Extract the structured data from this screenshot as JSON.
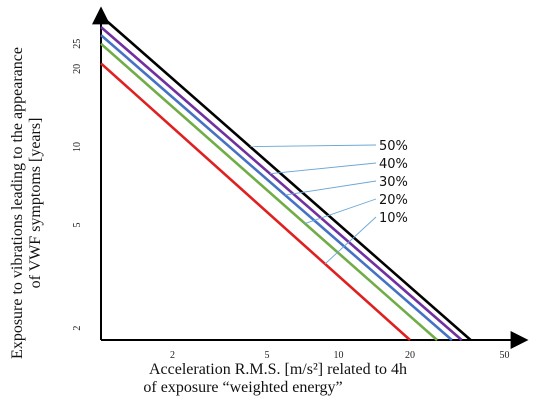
{
  "chart_data": {
    "type": "line",
    "title": "",
    "xlabel": [
      "Acceleration R.M.S. [m/s²] related to 4h",
      "of exposure “weighted energy”"
    ],
    "ylabel": [
      "Exposure to vibrations leading to the appearance",
      "of VWF symptoms [years]"
    ],
    "x_scale": "log",
    "y_scale": "log",
    "x_ticks": [
      2,
      5,
      10,
      20,
      50
    ],
    "y_ticks": [
      2,
      5,
      10,
      20,
      25
    ],
    "grid": false,
    "legend": "callout labels on the right, leader lines to each line",
    "series": [
      {
        "name": "50%",
        "color": "#000000",
        "x_at_top": 1.0,
        "x_at_bottom": 36,
        "y_at_top": 32,
        "y_at_bottom": 1.8
      },
      {
        "name": "40%",
        "color": "#7030a0",
        "x_at_top": 1.0,
        "x_at_bottom": 33,
        "y_at_top": 29,
        "y_at_bottom": 1.8
      },
      {
        "name": "30%",
        "color": "#4472c4",
        "x_at_top": 1.0,
        "x_at_bottom": 30,
        "y_at_top": 27,
        "y_at_bottom": 1.8
      },
      {
        "name": "20%",
        "color": "#70ad47",
        "x_at_top": 1.0,
        "x_at_bottom": 26,
        "y_at_top": 25,
        "y_at_bottom": 1.8
      },
      {
        "name": "10%",
        "color": "#e02020",
        "x_at_top": 1.0,
        "x_at_bottom": 20,
        "y_at_top": 21,
        "y_at_bottom": 1.8
      }
    ],
    "callouts": [
      "50%",
      "40%",
      "30%",
      "20%",
      "10%"
    ]
  }
}
